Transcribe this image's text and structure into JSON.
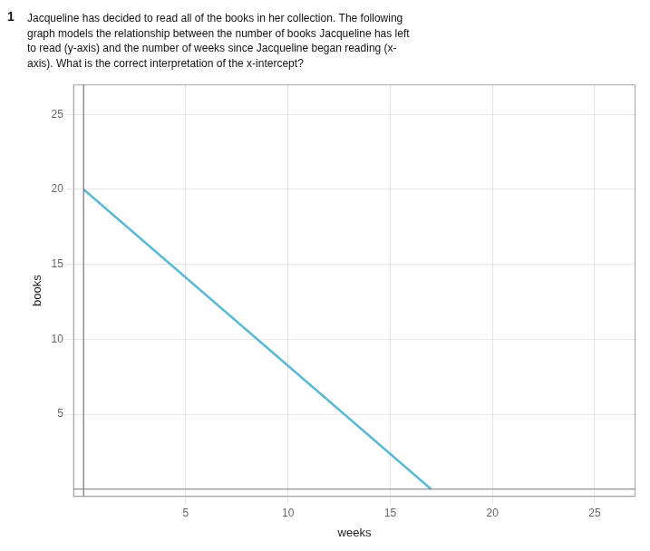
{
  "chart_data": {
    "type": "line",
    "title": "Jacqueline has decided to read all of the books in her collection. The following\ngraph models the relationship between the number of books Jacqueline has left\nto read (y-axis) and the number of weeks since Jacqueline began reading (x-\naxis). What is the correct interpretation of the x-intercept?",
    "annotations": [
      "1"
    ],
    "x": [
      0,
      17
    ],
    "values": [
      20,
      0
    ],
    "color": "#5ab8d5",
    "x_label": "weeks",
    "y_label": "books",
    "xlim": [
      -0.5,
      27
    ],
    "ylim": [
      -0.5,
      27
    ],
    "xticks": [
      5,
      10,
      15,
      20,
      25
    ],
    "yticks": [
      5,
      10,
      15,
      20,
      25
    ],
    "grid": true
  }
}
